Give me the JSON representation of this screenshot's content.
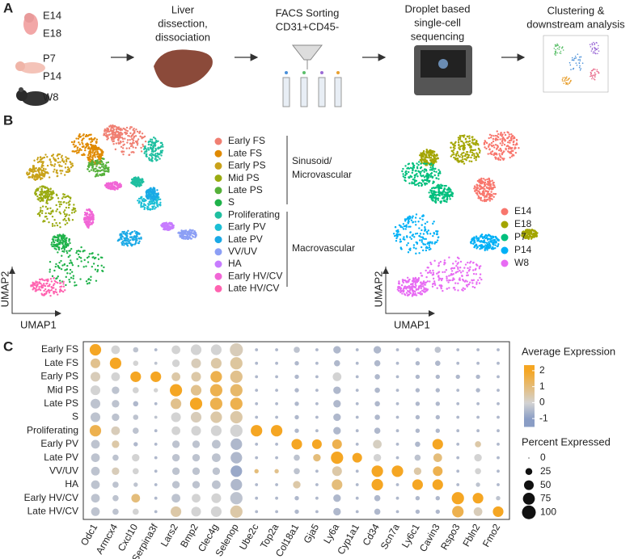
{
  "panel_a": {
    "letter": "A",
    "stages": [
      "E14",
      "E18",
      "P7",
      "P14",
      "W8"
    ],
    "steps": [
      [
        "Liver",
        "dissection,",
        "dissociation"
      ],
      [
        "FACS Sorting",
        "CD31+CD45-"
      ],
      [
        "Droplet based",
        "single-cell",
        "sequencing"
      ],
      [
        "Clustering &",
        "downstream analysis"
      ]
    ]
  },
  "panel_b": {
    "letter": "B",
    "clusters": [
      "Early FS",
      "Late FS",
      "Early PS",
      "Mid PS",
      "Late PS",
      "S",
      "Proliferating",
      "Early PV",
      "Late PV",
      "VV/UV",
      "HA",
      "Early HV/CV",
      "Late HV/CV"
    ],
    "cluster_colors": [
      "#f07f72",
      "#e08a00",
      "#c9a21a",
      "#9aab11",
      "#55b03a",
      "#1fb24a",
      "#1fbfa0",
      "#1cbfd5",
      "#1aa9e6",
      "#8c9ff5",
      "#c77cff",
      "#f166d6",
      "#ff63b0"
    ],
    "groups": [
      [
        "Sinusoid/",
        "Microvascular"
      ],
      [
        "Macrovascular"
      ]
    ],
    "ages": [
      "E14",
      "E18",
      "P7",
      "P14",
      "W8"
    ],
    "age_colors": [
      "#f8766d",
      "#a3a500",
      "#00bf7d",
      "#00b0f6",
      "#e76bf3"
    ],
    "axis_y": "UMAP2",
    "axis_x": "UMAP1"
  },
  "panel_c": {
    "letter": "C",
    "rows": [
      "Early FS",
      "Late FS",
      "Early PS",
      "Mid PS",
      "Late PS",
      "S",
      "Proliferating",
      "Early PV",
      "Late PV",
      "VV/UV",
      "HA",
      "Early HV/CV",
      "Late HV/CV"
    ],
    "columns": [
      "Odc1",
      "Armcx4",
      "Cxcl10",
      "Serpina3f",
      "Lars2",
      "Bmp2",
      "Clec4g",
      "Selenop",
      "Ube2c",
      "Top2a",
      "Col18a1",
      "Gja5",
      "Ly6a",
      "Cyp1a1",
      "Cd34",
      "Scn7a",
      "Ly6c1",
      "Cavin3",
      "Rspo3",
      "Fbln2",
      "Fmo2"
    ],
    "percent": [
      [
        70,
        40,
        15,
        5,
        40,
        60,
        60,
        90,
        5,
        5,
        20,
        5,
        30,
        5,
        30,
        5,
        10,
        20,
        5,
        5,
        5
      ],
      [
        50,
        70,
        15,
        5,
        30,
        50,
        60,
        80,
        5,
        5,
        10,
        5,
        20,
        5,
        20,
        5,
        10,
        15,
        5,
        5,
        5
      ],
      [
        50,
        40,
        60,
        60,
        40,
        50,
        70,
        80,
        5,
        5,
        10,
        5,
        40,
        5,
        15,
        5,
        10,
        10,
        10,
        10,
        5
      ],
      [
        50,
        30,
        20,
        10,
        80,
        60,
        80,
        80,
        5,
        5,
        10,
        5,
        30,
        5,
        15,
        5,
        10,
        10,
        5,
        10,
        5
      ],
      [
        50,
        30,
        15,
        5,
        60,
        80,
        80,
        80,
        5,
        5,
        10,
        5,
        30,
        5,
        15,
        5,
        10,
        10,
        5,
        5,
        5
      ],
      [
        50,
        30,
        15,
        5,
        50,
        60,
        70,
        80,
        5,
        5,
        10,
        5,
        30,
        5,
        15,
        5,
        10,
        10,
        5,
        5,
        5
      ],
      [
        70,
        40,
        20,
        5,
        40,
        50,
        60,
        80,
        70,
        70,
        10,
        5,
        30,
        5,
        20,
        5,
        10,
        10,
        5,
        5,
        5
      ],
      [
        40,
        30,
        10,
        5,
        30,
        30,
        40,
        70,
        5,
        5,
        60,
        50,
        50,
        5,
        40,
        5,
        15,
        60,
        5,
        20,
        5
      ],
      [
        40,
        20,
        30,
        5,
        30,
        30,
        40,
        70,
        5,
        5,
        20,
        30,
        80,
        50,
        30,
        5,
        20,
        40,
        5,
        30,
        5
      ],
      [
        40,
        30,
        20,
        5,
        30,
        30,
        30,
        70,
        10,
        10,
        20,
        5,
        50,
        5,
        70,
        70,
        30,
        50,
        5,
        20,
        5
      ],
      [
        40,
        20,
        10,
        5,
        30,
        30,
        40,
        70,
        5,
        5,
        30,
        5,
        60,
        5,
        70,
        5,
        60,
        60,
        5,
        10,
        5
      ],
      [
        40,
        20,
        40,
        5,
        40,
        40,
        50,
        80,
        5,
        5,
        10,
        5,
        30,
        5,
        20,
        5,
        10,
        10,
        80,
        60,
        10
      ],
      [
        40,
        20,
        20,
        5,
        60,
        50,
        60,
        80,
        5,
        5,
        10,
        5,
        30,
        5,
        20,
        5,
        10,
        10,
        70,
        40,
        60
      ]
    ],
    "expression": [
      [
        2,
        0,
        -0.3,
        -0.5,
        0,
        0,
        0,
        0.3,
        -0.5,
        -0.5,
        -0.3,
        -0.5,
        -0.5,
        -0.5,
        -0.5,
        -0.5,
        -0.5,
        -0.3,
        -0.5,
        -0.5,
        -0.5
      ],
      [
        0.8,
        2,
        0,
        -0.3,
        0,
        0.3,
        0.5,
        0.6,
        -0.5,
        -0.5,
        -0.5,
        -0.5,
        -0.5,
        -0.5,
        -0.5,
        -0.5,
        -0.5,
        -0.5,
        -0.5,
        -0.5,
        -0.5
      ],
      [
        0.3,
        0,
        2,
        2,
        0.5,
        0.5,
        1.5,
        0.8,
        -0.5,
        -0.5,
        -0.5,
        -0.5,
        0,
        -0.5,
        -0.5,
        -0.5,
        -0.5,
        -0.5,
        -0.5,
        -0.5,
        -0.5
      ],
      [
        0,
        -0.3,
        0,
        0,
        2,
        0.8,
        1.5,
        1.2,
        -0.5,
        -0.5,
        -0.5,
        -0.5,
        -0.5,
        -0.5,
        -0.5,
        -0.5,
        -0.5,
        -0.5,
        -0.5,
        -0.5,
        -0.5
      ],
      [
        -0.3,
        -0.3,
        -0.5,
        -0.5,
        0.8,
        2,
        1.5,
        1.5,
        -0.5,
        -0.5,
        -0.5,
        -0.5,
        -0.5,
        -0.5,
        -0.5,
        -0.5,
        -0.5,
        -0.5,
        -0.5,
        -0.5,
        -0.5
      ],
      [
        -0.3,
        -0.3,
        -0.3,
        -0.3,
        0,
        0.3,
        0.5,
        0.5,
        -0.5,
        -0.5,
        -0.5,
        -0.5,
        -0.5,
        -0.5,
        -0.5,
        -0.5,
        -0.5,
        -0.5,
        -0.5,
        -0.5,
        -0.5
      ],
      [
        1.5,
        0.3,
        -0.3,
        -0.5,
        0,
        0,
        0,
        0,
        2,
        2,
        -0.5,
        -0.5,
        -0.5,
        -0.5,
        -0.5,
        -0.5,
        -0.5,
        -0.5,
        -0.5,
        -0.5,
        -0.5
      ],
      [
        -0.3,
        0.5,
        -0.5,
        -0.5,
        -0.3,
        -0.3,
        -0.3,
        -0.5,
        -0.5,
        -0.5,
        2,
        2,
        1.5,
        -0.5,
        0.2,
        -0.5,
        -0.5,
        2,
        -0.5,
        0.5,
        -0.5
      ],
      [
        -0.3,
        -0.3,
        0,
        -0.5,
        -0.3,
        -0.3,
        -0.3,
        -0.5,
        -0.5,
        -0.5,
        -0.3,
        1,
        2,
        2,
        0,
        -0.5,
        -0.3,
        1,
        -0.5,
        0,
        -0.5
      ],
      [
        -0.3,
        0.3,
        0,
        -0.5,
        -0.3,
        -0.3,
        -0.3,
        -0.8,
        1,
        0.8,
        -0.3,
        -0.5,
        0.5,
        -0.5,
        2,
        2,
        0.5,
        1.5,
        -0.5,
        0,
        -0.5
      ],
      [
        -0.3,
        -0.3,
        -0.3,
        -0.5,
        -0.3,
        -0.3,
        -0.3,
        -0.5,
        -0.5,
        -0.5,
        0.5,
        -0.5,
        1,
        -0.5,
        2,
        -0.5,
        2,
        2,
        -0.5,
        -0.3,
        -0.5
      ],
      [
        -0.3,
        -0.3,
        1,
        -0.5,
        -0.3,
        0,
        0,
        -0.3,
        -0.5,
        -0.5,
        -0.5,
        -0.5,
        -0.5,
        -0.5,
        -0.5,
        -0.5,
        -0.5,
        -0.5,
        2,
        2,
        -0.3
      ],
      [
        -0.3,
        -0.3,
        0,
        -0.5,
        0.5,
        0,
        0,
        0.5,
        -0.5,
        -0.5,
        -0.5,
        -0.5,
        -0.5,
        -0.5,
        -0.5,
        -0.5,
        -0.5,
        -0.5,
        1.5,
        0.3,
        2
      ]
    ],
    "color_title": "Average Expression",
    "color_ticks": [
      2,
      1,
      0,
      -1
    ],
    "color_lim": [
      -1.5,
      2.35
    ],
    "color_low": "#8a9dc5",
    "color_mid": "#d3d3d3",
    "color_high": "#f5a623",
    "size_title": "Percent Expressed",
    "size_ticks": [
      0,
      25,
      50,
      75,
      100
    ]
  }
}
